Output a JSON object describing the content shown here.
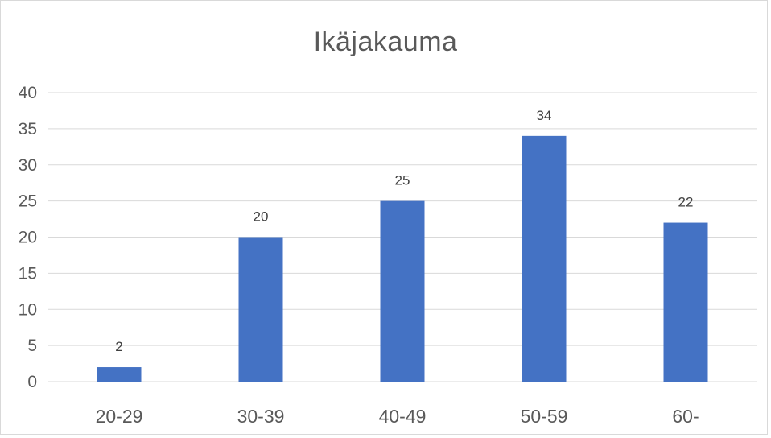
{
  "chart_data": {
    "type": "bar",
    "title": "Ikäjakauma",
    "categories": [
      "20-29",
      "30-39",
      "40-49",
      "50-59",
      "60-"
    ],
    "values": [
      2,
      20,
      25,
      34,
      22
    ],
    "data_labels": [
      "2",
      "20",
      "25",
      "34",
      "22"
    ],
    "ylim": [
      0,
      40
    ],
    "yticks": [
      0,
      5,
      10,
      15,
      20,
      25,
      30,
      35,
      40
    ],
    "xlabel": "",
    "ylabel": "",
    "grid": true,
    "legend": "none",
    "bar_color": "#4472c4",
    "gridline_color": "#d9d9d9",
    "text_color": "#595959"
  }
}
